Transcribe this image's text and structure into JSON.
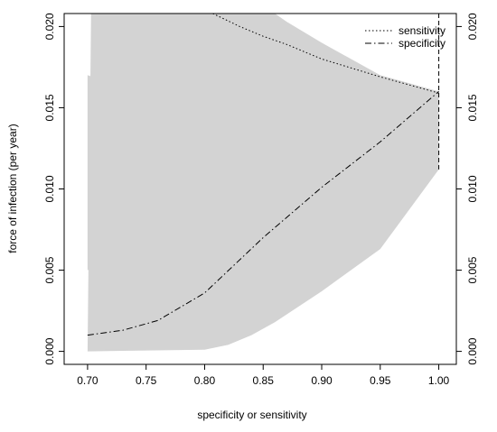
{
  "chart_data": {
    "type": "line",
    "title": "",
    "xlabel": "specificity or sensitivity",
    "ylabel": "force of infection (per year)",
    "xlim": [
      0.68,
      1.015
    ],
    "ylim": [
      -0.0008,
      0.0208
    ],
    "x_ticks": [
      0.7,
      0.75,
      0.8,
      0.85,
      0.9,
      0.95,
      1.0
    ],
    "x_tick_labels": [
      "0.70",
      "0.75",
      "0.80",
      "0.85",
      "0.90",
      "0.95",
      "1.00"
    ],
    "y_ticks": [
      0.0,
      0.005,
      0.01,
      0.015,
      0.02
    ],
    "y_tick_labels": [
      "0.000",
      "0.005",
      "0.010",
      "0.015",
      "0.020"
    ],
    "right_axis_tick_labels": [
      "0.000",
      "0.005",
      "0.010",
      "0.015",
      "0.020"
    ],
    "grid": false,
    "legend": {
      "position": "top-right",
      "entries": [
        {
          "label": "sensitivity",
          "line_style": "dotted"
        },
        {
          "label": "specificity",
          "line_style": "dashdot"
        }
      ]
    },
    "band_color": "#d3d3d3",
    "bands": [
      {
        "upper": [
          [
            0.7,
            0.017
          ],
          [
            0.73,
            0.0163
          ],
          [
            0.74,
            0.0158
          ],
          [
            0.76,
            0.0156
          ],
          [
            0.77,
            0.0153
          ],
          [
            0.78,
            0.015
          ],
          [
            0.79,
            0.0146
          ],
          [
            0.8,
            0.0145
          ],
          [
            0.81,
            0.0142
          ],
          [
            0.82,
            0.0138
          ],
          [
            0.83,
            0.0135
          ],
          [
            0.84,
            0.0133
          ],
          [
            0.85,
            0.0131
          ],
          [
            0.86,
            0.013
          ]
        ],
        "lower": [
          [
            0.7,
            0.005
          ],
          [
            0.73,
            0.0057
          ],
          [
            0.74,
            0.0066
          ],
          [
            0.76,
            0.0072
          ],
          [
            0.77,
            0.0074
          ],
          [
            0.78,
            0.0082
          ],
          [
            0.79,
            0.0087
          ],
          [
            0.8,
            0.0093
          ],
          [
            0.81,
            0.01
          ],
          [
            0.82,
            0.0105
          ],
          [
            0.83,
            0.0112
          ],
          [
            0.84,
            0.0118
          ],
          [
            0.85,
            0.0124
          ],
          [
            0.86,
            0.013
          ]
        ]
      },
      {
        "upper": [
          [
            0.703,
            0.0208
          ],
          [
            0.86,
            0.0208
          ],
          [
            0.87,
            0.0203
          ],
          [
            0.9,
            0.019
          ],
          [
            0.95,
            0.017
          ],
          [
            1.0,
            0.016
          ]
        ],
        "lower": [
          [
            0.7,
            0.0
          ],
          [
            0.8,
            0.0001
          ],
          [
            0.82,
            0.0004
          ],
          [
            0.84,
            0.001
          ],
          [
            0.86,
            0.0018
          ],
          [
            0.9,
            0.0037
          ],
          [
            0.95,
            0.0063
          ],
          [
            1.0,
            0.0112
          ]
        ]
      }
    ],
    "series": [
      {
        "name": "sensitivity",
        "line_style": "dotted",
        "x": [
          0.807,
          0.83,
          0.85,
          0.87,
          0.9,
          0.95,
          1.0
        ],
        "y": [
          0.0208,
          0.02,
          0.0194,
          0.0189,
          0.018,
          0.0169,
          0.0159
        ]
      },
      {
        "name": "specificity",
        "line_style": "dashdot",
        "x": [
          0.7,
          0.73,
          0.76,
          0.8,
          0.85,
          0.9,
          0.95,
          1.0
        ],
        "y": [
          0.001,
          0.0013,
          0.0019,
          0.0036,
          0.007,
          0.0101,
          0.0129,
          0.016
        ]
      },
      {
        "name": "",
        "line_style": "dashed",
        "x": [
          1.0,
          1.0
        ],
        "y": [
          0.0208,
          0.0112
        ]
      }
    ]
  }
}
